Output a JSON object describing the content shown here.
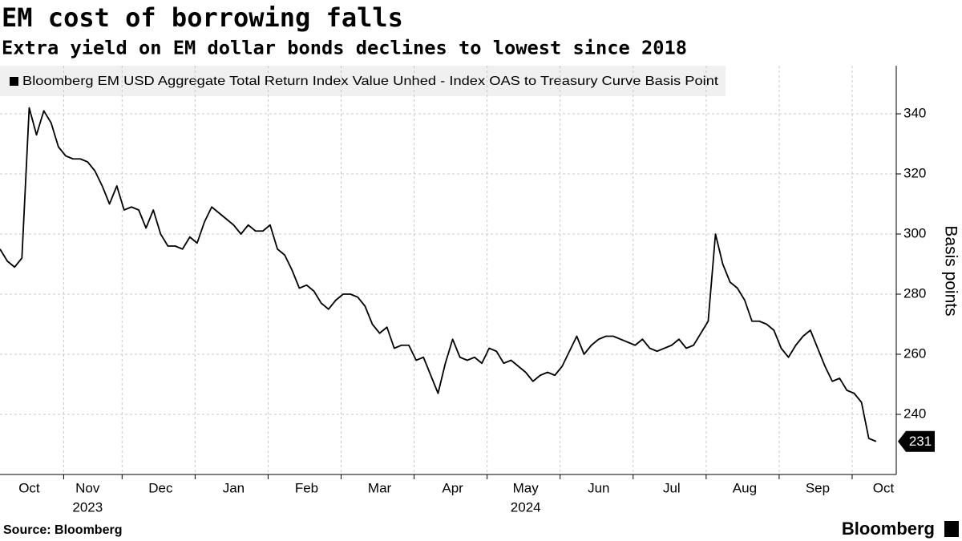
{
  "chart_data": {
    "type": "line",
    "title": "EM cost of borrowing falls",
    "subtitle": "Extra yield on EM dollar bonds declines to lowest since 2018",
    "y_label": "Basis points",
    "source": "Source: Bloomberg",
    "brand": "Bloomberg",
    "categories": [
      null,
      null,
      null,
      null,
      "Oct",
      null,
      null,
      null,
      null,
      null,
      null,
      null,
      "Nov",
      null,
      null,
      null,
      null,
      null,
      null,
      null,
      null,
      null,
      "Dec",
      null,
      null,
      null,
      null,
      null,
      null,
      null,
      null,
      null,
      "Jan",
      null,
      null,
      null,
      null,
      null,
      null,
      null,
      null,
      null,
      "Feb",
      null,
      null,
      null,
      null,
      null,
      null,
      null,
      null,
      null,
      "Mar",
      null,
      null,
      null,
      null,
      null,
      null,
      null,
      null,
      null,
      "Apr",
      null,
      null,
      null,
      null,
      null,
      null,
      null,
      null,
      null,
      "May",
      null,
      null,
      null,
      null,
      null,
      null,
      null,
      null,
      null,
      "Jun",
      null,
      null,
      null,
      null,
      null,
      null,
      null,
      null,
      null,
      "Jul",
      null,
      null,
      null,
      null,
      null,
      null,
      null,
      null,
      null,
      "Aug",
      null,
      null,
      null,
      null,
      null,
      null,
      null,
      null,
      null,
      "Sep",
      null,
      null,
      null,
      null,
      null,
      null,
      null,
      null,
      "Oct"
    ],
    "years": [
      null,
      null,
      null,
      null,
      null,
      null,
      null,
      null,
      null,
      null,
      null,
      null,
      "2023",
      null,
      null,
      null,
      null,
      null,
      null,
      null,
      null,
      null,
      null,
      null,
      null,
      null,
      null,
      null,
      null,
      null,
      null,
      null,
      null,
      null,
      null,
      null,
      null,
      null,
      null,
      null,
      null,
      null,
      null,
      null,
      null,
      null,
      null,
      null,
      null,
      null,
      null,
      null,
      null,
      null,
      null,
      null,
      null,
      null,
      null,
      null,
      null,
      null,
      null,
      null,
      null,
      null,
      null,
      null,
      null,
      null,
      null,
      null,
      "2024",
      null,
      null,
      null,
      null,
      null,
      null,
      null,
      null,
      null,
      null,
      null,
      null,
      null,
      null,
      null,
      null,
      null,
      null,
      null,
      null,
      null,
      null,
      null,
      null,
      null,
      null,
      null,
      null,
      null,
      null,
      null,
      null,
      null,
      null,
      null,
      null,
      null,
      null,
      null,
      null,
      null,
      null,
      null,
      null,
      null,
      null,
      null,
      null,
      null
    ],
    "series": [
      {
        "name": "Bloomberg EM USD Aggregate Total Return Index Value Unhed - Index OAS to Treasury Curve Basis Point",
        "color": "#000000",
        "values": [
          295,
          291,
          289,
          292,
          342,
          333,
          341,
          337,
          329,
          326,
          325,
          325,
          324,
          321,
          316,
          310,
          316,
          308,
          309,
          308,
          302,
          308,
          300,
          296,
          296,
          295,
          299,
          297,
          304,
          309,
          307,
          305,
          303,
          300,
          303,
          301,
          301,
          303,
          295,
          293,
          288,
          282,
          283,
          281,
          277,
          275,
          278,
          280,
          280,
          279,
          276,
          270,
          267,
          269,
          262,
          263,
          263,
          258,
          259,
          253,
          247,
          257,
          265,
          259,
          258,
          259,
          257,
          262,
          261,
          257,
          258,
          256,
          254,
          251,
          253,
          254,
          253,
          256,
          261,
          266,
          260,
          263,
          265,
          266,
          266,
          265,
          264,
          263,
          265,
          262,
          261,
          262,
          263,
          265,
          262,
          263,
          267,
          271,
          300,
          290,
          284,
          282,
          278,
          271,
          271,
          270,
          268,
          262,
          259,
          263,
          266,
          268,
          262,
          256,
          251,
          252,
          248,
          247,
          244,
          232,
          231,
          null
        ]
      }
    ],
    "end_label": "231",
    "ylim": [
      220,
      356
    ],
    "yticks": [
      240,
      260,
      280,
      300,
      320,
      340
    ],
    "grid": true
  }
}
